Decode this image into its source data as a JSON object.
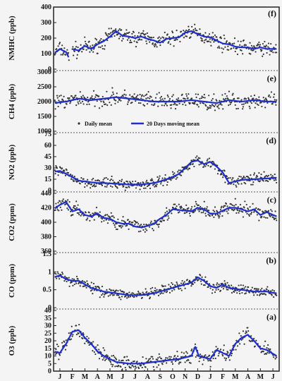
{
  "chart_data": {
    "type": "scatter",
    "x_tick_labels": [
      "J",
      "F",
      "M",
      "A",
      "M",
      "J",
      "J",
      "A",
      "S",
      "O",
      "N",
      "D",
      "J",
      "F",
      "M",
      "A",
      "M",
      "J"
    ],
    "legend": {
      "marker_label": "Daily mean",
      "line_label": "20 Days moving mean",
      "placement": "top-left of panel (e)"
    },
    "colors": {
      "points": "#333333",
      "line": "#1f2fcc",
      "frame": "#222222",
      "separator": "#555555",
      "background": "#f4f4f4"
    },
    "panels": [
      {
        "id": "f",
        "label": "(f)",
        "ylabel": "NMHC (ppb)",
        "ylim": [
          0,
          400
        ],
        "yticks": [
          0,
          100,
          200,
          300,
          400
        ],
        "smooth": [
          [
            0,
            100
          ],
          [
            0.5,
            130
          ],
          [
            1,
            110
          ],
          [
            1.3,
            60
          ],
          [
            1.5,
            130
          ],
          [
            2,
            120
          ],
          [
            2.5,
            150
          ],
          [
            3,
            130
          ],
          [
            3.5,
            160
          ],
          [
            4,
            180
          ],
          [
            4.5,
            210
          ],
          [
            5,
            245
          ],
          [
            5.5,
            215
          ],
          [
            6,
            210
          ],
          [
            6.5,
            200
          ],
          [
            7,
            210
          ],
          [
            7.5,
            195
          ],
          [
            8,
            185
          ],
          [
            8.5,
            170
          ],
          [
            9,
            195
          ],
          [
            9.5,
            200
          ],
          [
            10,
            205
          ],
          [
            10.5,
            235
          ],
          [
            11,
            245
          ],
          [
            11.5,
            225
          ],
          [
            12,
            210
          ],
          [
            12.5,
            205
          ],
          [
            13,
            185
          ],
          [
            13.5,
            165
          ],
          [
            14,
            160
          ],
          [
            14.5,
            145
          ],
          [
            15,
            140
          ],
          [
            15.5,
            140
          ],
          [
            16,
            130
          ],
          [
            16.5,
            140
          ],
          [
            17,
            130
          ],
          [
            17.8,
            130
          ]
        ],
        "noise": 40
      },
      {
        "id": "e",
        "label": "(e)",
        "ylabel": "CH4 (ppb)",
        "ylim": [
          1000,
          3000
        ],
        "yticks": [
          1000,
          1500,
          2000,
          2500,
          3000
        ],
        "smooth": [
          [
            0,
            1950
          ],
          [
            1,
            2000
          ],
          [
            2,
            2100
          ],
          [
            3,
            2050
          ],
          [
            4,
            2100
          ],
          [
            5,
            2150
          ],
          [
            6,
            2100
          ],
          [
            7,
            2050
          ],
          [
            8,
            2000
          ],
          [
            9,
            2000
          ],
          [
            10,
            2000
          ],
          [
            11,
            2050
          ],
          [
            12,
            2000
          ],
          [
            13,
            1950
          ],
          [
            14,
            2050
          ],
          [
            15,
            2000
          ],
          [
            16,
            2050
          ],
          [
            17,
            2000
          ],
          [
            17.8,
            2000
          ]
        ],
        "noise": 220
      },
      {
        "id": "d",
        "label": "(d)",
        "ylabel": "NO2 (ppb)",
        "ylim": [
          0,
          75
        ],
        "yticks": [
          0,
          15,
          30,
          45,
          60,
          75
        ],
        "smooth": [
          [
            0,
            25
          ],
          [
            0.5,
            26
          ],
          [
            1,
            22
          ],
          [
            1.5,
            18
          ],
          [
            2,
            13
          ],
          [
            2.5,
            12
          ],
          [
            3,
            11
          ],
          [
            3.5,
            10
          ],
          [
            4,
            10
          ],
          [
            5,
            9
          ],
          [
            6,
            8
          ],
          [
            7,
            8
          ],
          [
            7.5,
            9
          ],
          [
            8,
            10
          ],
          [
            8.5,
            12
          ],
          [
            9,
            15
          ],
          [
            9.5,
            18
          ],
          [
            10,
            22
          ],
          [
            10.5,
            30
          ],
          [
            11,
            38
          ],
          [
            11.5,
            40
          ],
          [
            12,
            35
          ],
          [
            12.5,
            38
          ],
          [
            13,
            32
          ],
          [
            13.5,
            24
          ],
          [
            14,
            10
          ],
          [
            14.5,
            12
          ],
          [
            15,
            14
          ],
          [
            16,
            15
          ],
          [
            17,
            16
          ],
          [
            17.8,
            17
          ]
        ],
        "noise": 6
      },
      {
        "id": "c",
        "label": "(c)",
        "ylabel": "CO2 (ppm)",
        "ylim": [
          360,
          440
        ],
        "yticks": [
          360,
          380,
          400,
          420,
          440
        ],
        "smooth": [
          [
            0,
            418
          ],
          [
            0.5,
            424
          ],
          [
            1,
            428
          ],
          [
            1.5,
            415
          ],
          [
            2,
            418
          ],
          [
            2.5,
            410
          ],
          [
            3,
            408
          ],
          [
            3.5,
            412
          ],
          [
            4,
            406
          ],
          [
            4.5,
            405
          ],
          [
            5,
            400
          ],
          [
            5.5,
            398
          ],
          [
            6,
            398
          ],
          [
            6.5,
            394
          ],
          [
            7,
            393
          ],
          [
            7.5,
            395
          ],
          [
            8,
            398
          ],
          [
            8.5,
            405
          ],
          [
            9,
            410
          ],
          [
            9.5,
            418
          ],
          [
            10,
            417
          ],
          [
            10.5,
            416
          ],
          [
            11,
            415
          ],
          [
            11.5,
            420
          ],
          [
            12,
            418
          ],
          [
            12.5,
            412
          ],
          [
            13,
            412
          ],
          [
            13.5,
            416
          ],
          [
            14,
            420
          ],
          [
            14.5,
            420
          ],
          [
            15,
            418
          ],
          [
            15.5,
            415
          ],
          [
            16,
            418
          ],
          [
            16.5,
            410
          ],
          [
            17,
            414
          ],
          [
            17.8,
            408
          ]
        ],
        "noise": 8
      },
      {
        "id": "b",
        "label": "(b)",
        "ylabel": "CO (ppm)",
        "ylim": [
          0,
          1.5
        ],
        "yticks": [
          0.0,
          0.5,
          1.0,
          1.5
        ],
        "smooth": [
          [
            0,
            0.85
          ],
          [
            0.5,
            0.9
          ],
          [
            1,
            0.8
          ],
          [
            1.5,
            0.75
          ],
          [
            2,
            0.75
          ],
          [
            2.5,
            0.65
          ],
          [
            3,
            0.55
          ],
          [
            3.5,
            0.5
          ],
          [
            4,
            0.45
          ],
          [
            5,
            0.4
          ],
          [
            6,
            0.35
          ],
          [
            7,
            0.35
          ],
          [
            8,
            0.4
          ],
          [
            9,
            0.5
          ],
          [
            9.5,
            0.55
          ],
          [
            10,
            0.6
          ],
          [
            10.5,
            0.65
          ],
          [
            11,
            0.7
          ],
          [
            11.5,
            0.85
          ],
          [
            12,
            0.75
          ],
          [
            12.5,
            0.6
          ],
          [
            13,
            0.55
          ],
          [
            13.5,
            0.65
          ],
          [
            14,
            0.55
          ],
          [
            15,
            0.5
          ],
          [
            16,
            0.45
          ],
          [
            17,
            0.45
          ],
          [
            17.8,
            0.4
          ]
        ],
        "noise": 0.12
      },
      {
        "id": "a",
        "label": "(a)",
        "ylabel": "O3 (ppb)",
        "ylim": [
          0,
          40
        ],
        "yticks": [
          0,
          5,
          10,
          15,
          20,
          25,
          30,
          35,
          40
        ],
        "smooth": [
          [
            0,
            13
          ],
          [
            0.5,
            12
          ],
          [
            1,
            18
          ],
          [
            1.5,
            26
          ],
          [
            2,
            27
          ],
          [
            2.5,
            22
          ],
          [
            3,
            18
          ],
          [
            3.5,
            13
          ],
          [
            4,
            10
          ],
          [
            4.5,
            8
          ],
          [
            5,
            6
          ],
          [
            6,
            5
          ],
          [
            7,
            5
          ],
          [
            8,
            6
          ],
          [
            9,
            7
          ],
          [
            10,
            8
          ],
          [
            10.5,
            9
          ],
          [
            11,
            10
          ],
          [
            11.3,
            16
          ],
          [
            11.6,
            10
          ],
          [
            12,
            9
          ],
          [
            12.5,
            8
          ],
          [
            13,
            14
          ],
          [
            13.5,
            12
          ],
          [
            14,
            10
          ],
          [
            14.5,
            18
          ],
          [
            15,
            22
          ],
          [
            15.5,
            24
          ],
          [
            16,
            20
          ],
          [
            16.5,
            15
          ],
          [
            17,
            14
          ],
          [
            17.8,
            10
          ]
        ],
        "noise": 4
      }
    ]
  }
}
